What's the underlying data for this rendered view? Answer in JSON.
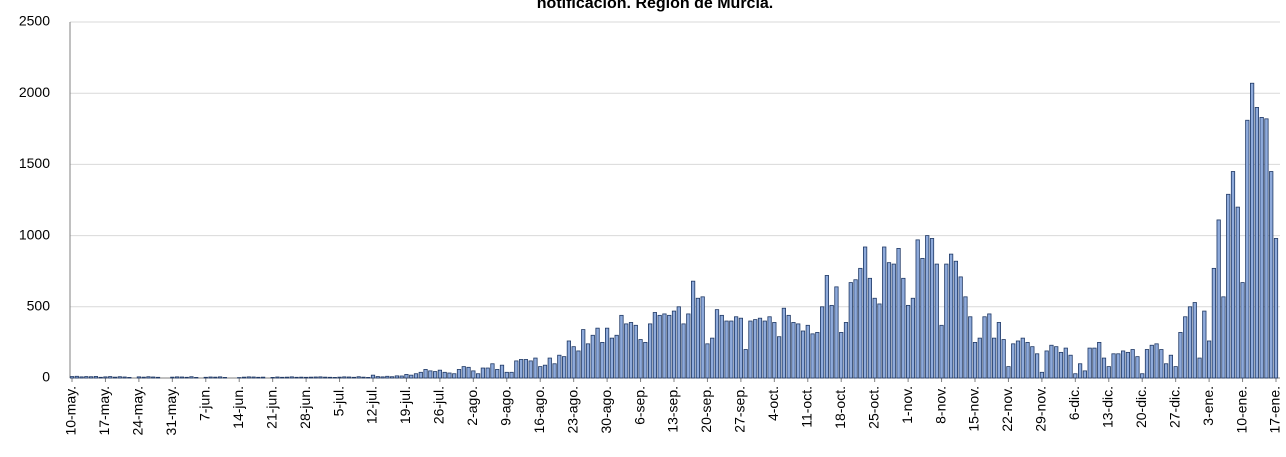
{
  "chart_data": {
    "type": "bar",
    "title": "notificación. Región de Murcia.",
    "categories": [
      "10-may.",
      null,
      null,
      null,
      null,
      null,
      null,
      "17-may.",
      null,
      null,
      null,
      null,
      null,
      null,
      "24-may.",
      null,
      null,
      null,
      null,
      null,
      null,
      "31-may.",
      null,
      null,
      null,
      null,
      null,
      null,
      "7-jun.",
      null,
      null,
      null,
      null,
      null,
      null,
      "14-jun.",
      null,
      null,
      null,
      null,
      null,
      null,
      "21-jun.",
      null,
      null,
      null,
      null,
      null,
      null,
      "28-jun.",
      null,
      null,
      null,
      null,
      null,
      null,
      "5-jul.",
      null,
      null,
      null,
      null,
      null,
      null,
      "12-jul.",
      null,
      null,
      null,
      null,
      null,
      null,
      "19-jul.",
      null,
      null,
      null,
      null,
      null,
      null,
      "26-jul.",
      null,
      null,
      null,
      null,
      null,
      null,
      "2-ago.",
      null,
      null,
      null,
      null,
      null,
      null,
      "9-ago.",
      null,
      null,
      null,
      null,
      null,
      null,
      "16-ago.",
      null,
      null,
      null,
      null,
      null,
      null,
      "23-ago.",
      null,
      null,
      null,
      null,
      null,
      null,
      "30-ago.",
      null,
      null,
      null,
      null,
      null,
      null,
      "6-sep.",
      null,
      null,
      null,
      null,
      null,
      null,
      "13-sep.",
      null,
      null,
      null,
      null,
      null,
      null,
      "20-sep.",
      null,
      null,
      null,
      null,
      null,
      null,
      "27-sep.",
      null,
      null,
      null,
      null,
      null,
      null,
      "4-oct.",
      null,
      null,
      null,
      null,
      null,
      null,
      "11-oct.",
      null,
      null,
      null,
      null,
      null,
      null,
      "18-oct.",
      null,
      null,
      null,
      null,
      null,
      null,
      "25-oct.",
      null,
      null,
      null,
      null,
      null,
      null,
      "1-nov.",
      null,
      null,
      null,
      null,
      null,
      null,
      "8-nov.",
      null,
      null,
      null,
      null,
      null,
      null,
      "15-nov.",
      null,
      null,
      null,
      null,
      null,
      null,
      "22-nov.",
      null,
      null,
      null,
      null,
      null,
      null,
      "29-nov.",
      null,
      null,
      null,
      null,
      null,
      null,
      "6-dic.",
      null,
      null,
      null,
      null,
      null,
      null,
      "13-dic.",
      null,
      null,
      null,
      null,
      null,
      null,
      "20-dic.",
      null,
      null,
      null,
      null,
      null,
      null,
      "27-dic.",
      null,
      null,
      null,
      null,
      null,
      null,
      "3-ene.",
      null,
      null,
      null,
      null,
      null,
      null,
      "10-ene.",
      null,
      null,
      null,
      null,
      null,
      null,
      "17-ene."
    ],
    "values": [
      10,
      12,
      8,
      10,
      9,
      11,
      5,
      8,
      10,
      6,
      9,
      7,
      4,
      0,
      8,
      6,
      9,
      7,
      5,
      0,
      0,
      6,
      8,
      7,
      5,
      9,
      4,
      0,
      5,
      7,
      6,
      8,
      4,
      0,
      0,
      3,
      6,
      8,
      7,
      5,
      6,
      0,
      4,
      7,
      5,
      6,
      8,
      5,
      6,
      5,
      6,
      7,
      8,
      6,
      5,
      4,
      6,
      8,
      7,
      5,
      9,
      6,
      4,
      20,
      10,
      8,
      12,
      9,
      15,
      14,
      25,
      20,
      30,
      40,
      60,
      50,
      45,
      55,
      40,
      35,
      30,
      60,
      80,
      75,
      50,
      30,
      70,
      70,
      100,
      60,
      90,
      40,
      40,
      120,
      130,
      130,
      120,
      140,
      80,
      90,
      140,
      100,
      160,
      150,
      260,
      220,
      190,
      340,
      240,
      300,
      350,
      250,
      350,
      280,
      300,
      440,
      380,
      390,
      370,
      270,
      250,
      380,
      460,
      440,
      450,
      440,
      470,
      500,
      380,
      450,
      680,
      560,
      570,
      240,
      280,
      480,
      440,
      400,
      400,
      430,
      420,
      200,
      400,
      410,
      420,
      400,
      430,
      390,
      290,
      490,
      440,
      390,
      380,
      330,
      370,
      310,
      320,
      500,
      720,
      510,
      640,
      320,
      390,
      670,
      690,
      770,
      920,
      700,
      560,
      520,
      920,
      810,
      800,
      910,
      700,
      510,
      560,
      970,
      840,
      1000,
      980,
      800,
      370,
      800,
      870,
      820,
      710,
      570,
      430,
      250,
      280,
      430,
      450,
      280,
      390,
      270,
      80,
      240,
      260,
      280,
      250,
      220,
      170,
      40,
      190,
      230,
      220,
      180,
      210,
      160,
      30,
      100,
      50,
      210,
      210,
      250,
      140,
      80,
      170,
      170,
      190,
      180,
      200,
      150,
      30,
      200,
      230,
      240,
      200,
      100,
      160,
      80,
      320,
      430,
      500,
      530,
      140,
      470,
      260,
      770,
      1110,
      570,
      1290,
      1450,
      1200,
      670,
      1810,
      2070,
      1900,
      1830,
      1820,
      1450,
      980
    ],
    "color": "#8eaadb",
    "ylim": [
      0,
      2500
    ],
    "yticks": [
      0,
      500,
      1000,
      1500,
      2000,
      2500
    ],
    "grid": true
  }
}
